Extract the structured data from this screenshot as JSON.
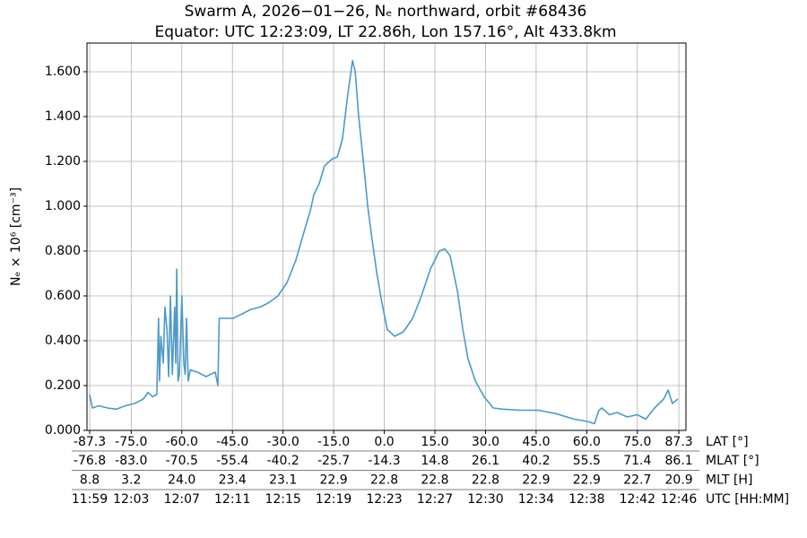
{
  "chart_data": {
    "type": "line",
    "title": "Swarm A, 2026−01−26, Nₑ northward, orbit #68436",
    "subtitle": "Equator: UTC 12:23:09, LT 22.86h, Lon 157.16°, Alt 433.8km",
    "y_label": "Nₑ × 10⁶ [cm⁻³]",
    "x_label": "LAT [°]",
    "xlim": [
      -88.1,
      89.4
    ],
    "ylim": [
      0,
      1.728
    ],
    "grid": true,
    "xticks": [
      -87.3,
      {
        "value": -75,
        "label": "-75.0"
      },
      {
        "value": -60,
        "label": "-60.0"
      },
      {
        "value": -45,
        "label": "-45.0"
      },
      {
        "value": -30,
        "label": "-30.0"
      },
      {
        "value": -15,
        "label": "-15.0"
      },
      {
        "value": 0,
        "label": "0.0"
      },
      {
        "value": 15,
        "label": "15.0"
      },
      {
        "value": 30,
        "label": "30.0"
      },
      {
        "value": 45,
        "label": "45.0"
      },
      {
        "value": 60,
        "label": "60.0"
      },
      {
        "value": 75,
        "label": "75.0"
      },
      87.3
    ],
    "yticks": [
      {
        "value": 0,
        "label": "0.000"
      },
      {
        "value": 0.2,
        "label": "0.200"
      },
      {
        "value": 0.4,
        "label": "0.400"
      },
      {
        "value": 0.6,
        "label": "0.600"
      },
      {
        "value": 0.8,
        "label": "0.800"
      },
      {
        "value": 1.0,
        "label": "1.000"
      },
      {
        "value": 1.2,
        "label": "1.200"
      },
      {
        "value": 1.4,
        "label": "1.400"
      },
      {
        "value": 1.6,
        "label": "1.600"
      }
    ],
    "x_rows": [
      {
        "name": "MLAT [°]",
        "labels": [
          "-76.8",
          "-83.0",
          "-70.5",
          "-55.4",
          "-40.2",
          "-25.7",
          "-14.3",
          "14.8",
          "26.1",
          "40.2",
          "55.5",
          "71.4",
          "86.1"
        ]
      },
      {
        "name": "MLT [H]",
        "labels": [
          "8.8",
          "3.2",
          "24.0",
          "23.4",
          "23.1",
          "22.9",
          "22.8",
          "22.8",
          "22.8",
          "22.9",
          "22.9",
          "22.7",
          "20.9"
        ]
      },
      {
        "name": "UTC [HH:MM]",
        "labels": [
          "11:59",
          "12:03",
          "12:07",
          "12:11",
          "12:15",
          "12:19",
          "12:23",
          "12:27",
          "12:30",
          "12:34",
          "12:38",
          "12:42",
          "12:46"
        ]
      }
    ],
    "series": [
      {
        "name": "Ne",
        "color": "#4c9ac9",
        "x": [
          -87.3,
          -86.5,
          -84.6,
          -82.0,
          -79.3,
          -76.7,
          -74.0,
          -71.4,
          -70.0,
          -68.7,
          -67.4,
          -66.9,
          -66.6,
          -66.2,
          -65.5,
          -65.0,
          -64.4,
          -63.9,
          -63.4,
          -62.8,
          -62.1,
          -61.8,
          -61.5,
          -61.1,
          -60.7,
          -60.0,
          -59.4,
          -59.0,
          -58.6,
          -58.1,
          -57.5,
          -55.4,
          -52.8,
          -50.1,
          -49.3,
          -48.9,
          -48.5,
          -46.9,
          -44.8,
          -42.1,
          -39.5,
          -36.8,
          -34.2,
          -31.5,
          -28.8,
          -26.2,
          -23.5,
          -21.9,
          -20.9,
          -19.3,
          -17.7,
          -15.5,
          -13.9,
          -12.4,
          -10.8,
          -9.4,
          -8.6,
          -7.6,
          -6.2,
          -4.9,
          -3.6,
          -2.2,
          -0.7,
          0.9,
          3.1,
          5.7,
          8.4,
          11.0,
          13.7,
          16.3,
          17.9,
          19.5,
          21.7,
          23.3,
          24.8,
          27.0,
          29.6,
          32.3,
          35.0,
          40.3,
          45.6,
          50.9,
          56.3,
          60.2,
          62.3,
          63.6,
          64.5,
          66.7,
          69.0,
          72.0,
          75.0,
          77.5,
          80.1,
          82.8,
          84.1,
          85.4,
          87.0
        ],
        "values": [
          0.16,
          0.1,
          0.11,
          0.1,
          0.095,
          0.11,
          0.12,
          0.14,
          0.17,
          0.15,
          0.16,
          0.5,
          0.22,
          0.42,
          0.3,
          0.55,
          0.45,
          0.24,
          0.6,
          0.25,
          0.55,
          0.3,
          0.72,
          0.22,
          0.25,
          0.6,
          0.3,
          0.25,
          0.5,
          0.22,
          0.27,
          0.26,
          0.24,
          0.26,
          0.2,
          0.5,
          0.5,
          0.5,
          0.5,
          0.52,
          0.54,
          0.55,
          0.57,
          0.6,
          0.66,
          0.76,
          0.9,
          0.98,
          1.05,
          1.1,
          1.18,
          1.21,
          1.22,
          1.3,
          1.5,
          1.65,
          1.6,
          1.4,
          1.2,
          1.0,
          0.85,
          0.7,
          0.57,
          0.45,
          0.42,
          0.44,
          0.5,
          0.6,
          0.72,
          0.8,
          0.81,
          0.78,
          0.62,
          0.45,
          0.32,
          0.22,
          0.15,
          0.1,
          0.095,
          0.09,
          0.09,
          0.075,
          0.05,
          0.04,
          0.03,
          0.09,
          0.1,
          0.07,
          0.08,
          0.06,
          0.07,
          0.05,
          0.1,
          0.14,
          0.18,
          0.12,
          0.14
        ]
      }
    ]
  }
}
